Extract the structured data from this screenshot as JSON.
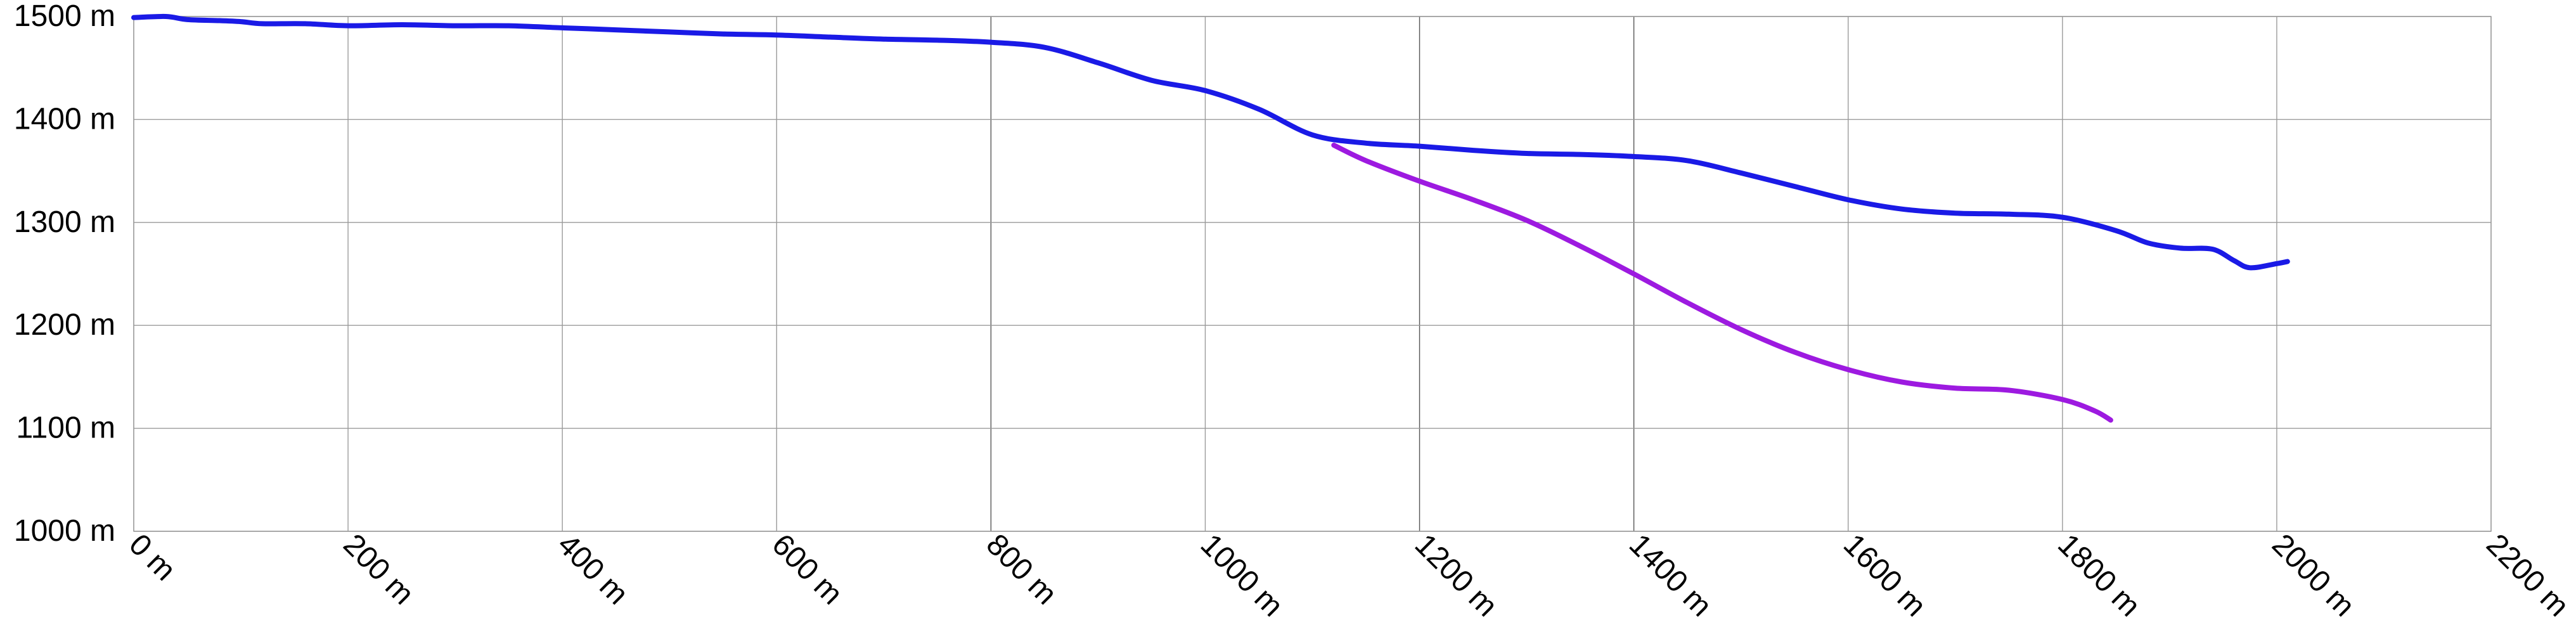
{
  "chart_data": {
    "type": "line",
    "title": "",
    "xlabel": "",
    "ylabel": "",
    "xlim": [
      0,
      2200
    ],
    "ylim": [
      1000,
      1500
    ],
    "x_ticks": [
      0,
      200,
      400,
      600,
      800,
      1000,
      1200,
      1400,
      1600,
      1800,
      2000,
      2200
    ],
    "x_tick_labels": [
      "0 m",
      "200 m",
      "400 m",
      "600 m",
      "800 m",
      "1000 m",
      "1200 m",
      "1400 m",
      "1600 m",
      "1800 m",
      "2000 m",
      "2200 m"
    ],
    "y_ticks": [
      1000,
      1100,
      1200,
      1300,
      1400,
      1500
    ],
    "y_tick_labels": [
      "1000 m",
      "1100 m",
      "1200 m",
      "1300 m",
      "1400 m",
      "1500 m"
    ],
    "grid": true,
    "legend": "none",
    "series": [
      {
        "color": "#1a1ae6",
        "points": [
          [
            0,
            1499
          ],
          [
            30,
            1500
          ],
          [
            50,
            1497
          ],
          [
            80,
            1496
          ],
          [
            100,
            1495
          ],
          [
            120,
            1493
          ],
          [
            160,
            1493
          ],
          [
            200,
            1491
          ],
          [
            250,
            1492
          ],
          [
            300,
            1491
          ],
          [
            350,
            1491
          ],
          [
            400,
            1489
          ],
          [
            450,
            1487
          ],
          [
            500,
            1485
          ],
          [
            550,
            1483
          ],
          [
            600,
            1482
          ],
          [
            650,
            1480
          ],
          [
            700,
            1478
          ],
          [
            750,
            1477
          ],
          [
            800,
            1475
          ],
          [
            850,
            1470
          ],
          [
            900,
            1455
          ],
          [
            950,
            1438
          ],
          [
            1000,
            1428
          ],
          [
            1050,
            1410
          ],
          [
            1100,
            1385
          ],
          [
            1150,
            1377
          ],
          [
            1200,
            1374
          ],
          [
            1250,
            1370
          ],
          [
            1300,
            1367
          ],
          [
            1350,
            1366
          ],
          [
            1400,
            1364
          ],
          [
            1450,
            1360
          ],
          [
            1500,
            1348
          ],
          [
            1550,
            1335
          ],
          [
            1600,
            1322
          ],
          [
            1650,
            1313
          ],
          [
            1700,
            1309
          ],
          [
            1750,
            1308
          ],
          [
            1800,
            1305
          ],
          [
            1850,
            1292
          ],
          [
            1880,
            1280
          ],
          [
            1910,
            1275
          ],
          [
            1940,
            1274
          ],
          [
            1960,
            1263
          ],
          [
            1975,
            1256
          ],
          [
            2000,
            1260
          ],
          [
            2010,
            1262
          ]
        ]
      },
      {
        "color": "#9d1ae0",
        "points": [
          [
            1120,
            1375
          ],
          [
            1150,
            1360
          ],
          [
            1200,
            1340
          ],
          [
            1250,
            1322
          ],
          [
            1300,
            1302
          ],
          [
            1350,
            1277
          ],
          [
            1400,
            1250
          ],
          [
            1450,
            1222
          ],
          [
            1500,
            1196
          ],
          [
            1550,
            1174
          ],
          [
            1600,
            1157
          ],
          [
            1650,
            1145
          ],
          [
            1700,
            1139
          ],
          [
            1750,
            1137
          ],
          [
            1800,
            1128
          ],
          [
            1830,
            1117
          ],
          [
            1845,
            1108
          ]
        ]
      }
    ]
  }
}
